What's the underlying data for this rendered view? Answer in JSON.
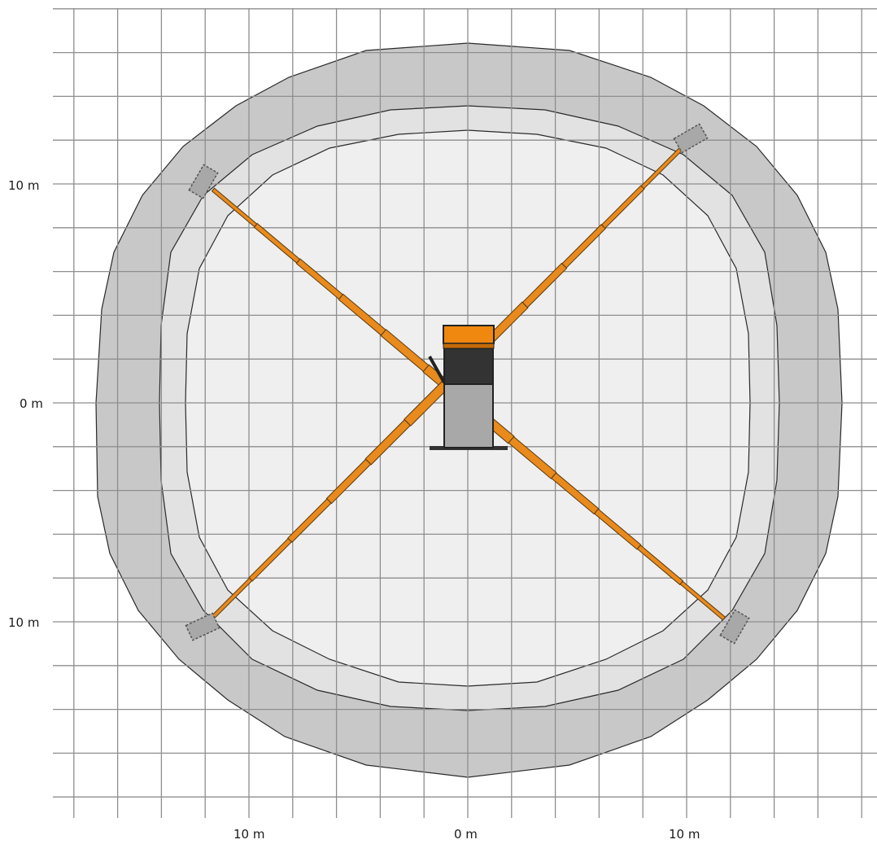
{
  "diagram": {
    "y_labels": [
      "10 m",
      "0 m",
      "10 m"
    ],
    "x_labels": [
      "10 m",
      "0 m",
      "10 m"
    ]
  },
  "colors": {
    "outer_zone": "#c8c8c8",
    "middle_zone": "#e2e2e2",
    "inner_zone": "#efefef",
    "grid_line": "#8e8e8e",
    "boom": "#e88a1c",
    "boom_outline": "#5a3a10",
    "platform": "#a8a8a8",
    "carrier_dark": "#333333",
    "carrier_orange": "#f0870f"
  }
}
